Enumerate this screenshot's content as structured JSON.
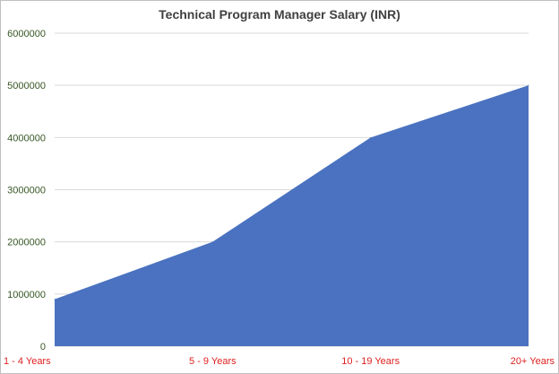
{
  "chart_data": {
    "type": "area",
    "title": "Technical Program Manager Salary (INR)",
    "xlabel": "",
    "ylabel": "",
    "categories": [
      "1 - 4 Years",
      "5 - 9 Years",
      "10 - 19 Years",
      "20+ Years"
    ],
    "values": [
      900000,
      2000000,
      4000000,
      5000000
    ],
    "ylim": [
      0,
      6000000
    ],
    "yticks": [
      "0",
      "1000000",
      "2000000",
      "3000000",
      "4000000",
      "5000000",
      "6000000"
    ],
    "grid": true,
    "legend": "none",
    "colors": {
      "fill": "#4a72c0",
      "ytick_text": "#375623",
      "xtick_text": "#e02020",
      "gridline": "#d9d9d9",
      "title_text": "#404040"
    }
  }
}
